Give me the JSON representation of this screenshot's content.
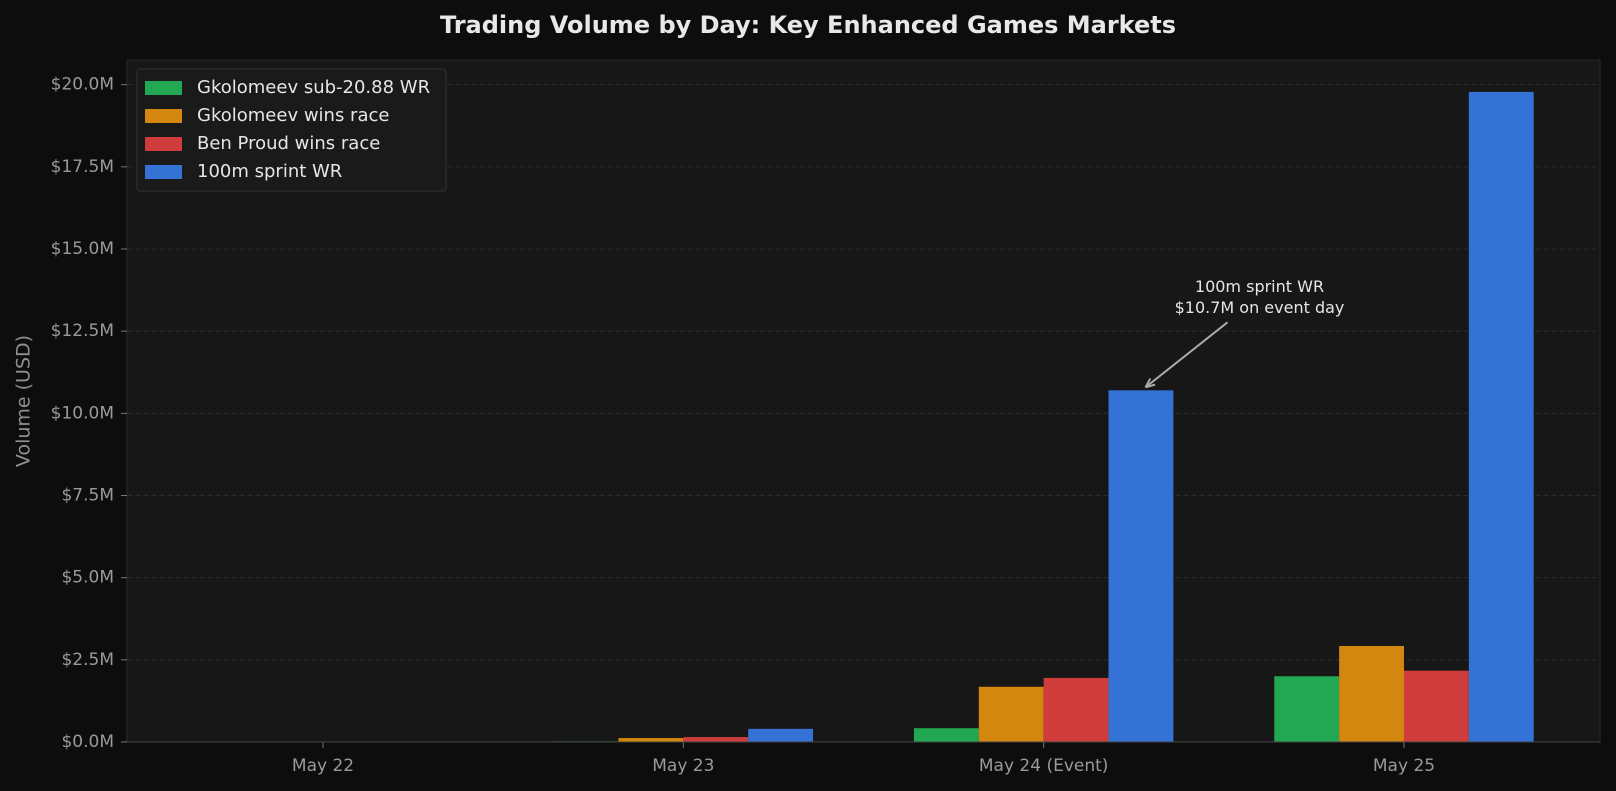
{
  "chart_data": {
    "type": "bar",
    "title": "Trading Volume by Day: Key Enhanced Games Markets",
    "y_label": "Volume (USD)",
    "categories": [
      "May 22",
      "May 23",
      "May 24 (Event)",
      "May 25"
    ],
    "series": [
      {
        "name": "Gkolomeev sub-20.88 WR",
        "color": "#22a852",
        "values": [
          0,
          20000,
          420000,
          2000000
        ]
      },
      {
        "name": "Gkolomeev wins race",
        "color": "#d4870e",
        "values": [
          0,
          120000,
          1680000,
          2920000
        ]
      },
      {
        "name": "Ben Proud wins race",
        "color": "#cf3c3c",
        "values": [
          0,
          150000,
          1950000,
          2170000
        ]
      },
      {
        "name": "100m sprint WR",
        "color": "#3572d6",
        "values": [
          0,
          400000,
          10700000,
          19780000
        ]
      }
    ],
    "annotation": [
      "100m sprint WR",
      "$10.7M on event day"
    ],
    "ylim": [
      0,
      20750000
    ],
    "yticks": [
      {
        "value": 0,
        "label": "$0.0M"
      },
      {
        "value": 2500000,
        "label": "$2.5M"
      },
      {
        "value": 5000000,
        "label": "$5.0M"
      },
      {
        "value": 7500000,
        "label": "$7.5M"
      },
      {
        "value": 10000000,
        "label": "$10.0M"
      },
      {
        "value": 12500000,
        "label": "$12.5M"
      },
      {
        "value": 15000000,
        "label": "$15.0M"
      },
      {
        "value": 17500000,
        "label": "$17.5M"
      },
      {
        "value": 20000000,
        "label": "$20.0M"
      }
    ],
    "grid": true,
    "legend": "upper left"
  }
}
